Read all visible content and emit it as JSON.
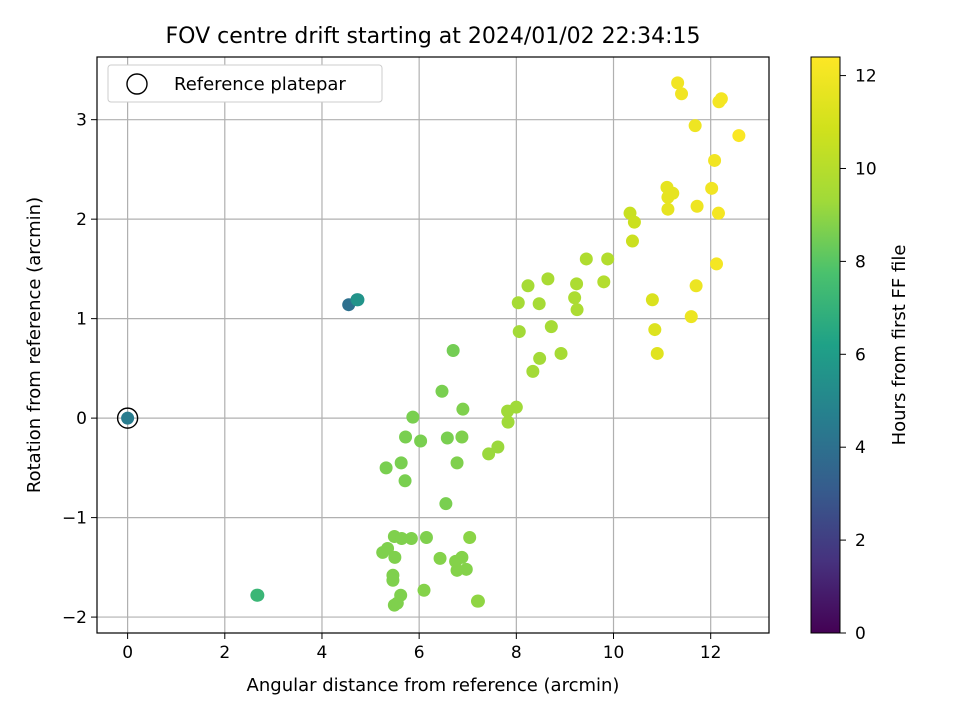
{
  "chart_data": {
    "type": "scatter",
    "title": "FOV centre drift starting at 2024/01/02 22:34:15",
    "xlabel": "Angular distance from reference (arcmin)",
    "ylabel": "Rotation from reference (arcmin)",
    "xlim": [
      -0.63,
      13.2
    ],
    "ylim": [
      -2.16,
      3.63
    ],
    "xticks": [
      0,
      2,
      4,
      6,
      8,
      10,
      12
    ],
    "yticks": [
      -2,
      -1,
      0,
      1,
      2,
      3
    ],
    "grid": true,
    "legend": {
      "position": "upper-left",
      "entries": [
        "Reference platepar"
      ]
    },
    "colorbar": {
      "label": "Hours from first FF file",
      "colormap": "viridis",
      "range": [
        0,
        12.4
      ],
      "ticks": [
        0,
        2,
        4,
        6,
        8,
        10,
        12
      ]
    },
    "reference_point": {
      "x": 0,
      "y": 0,
      "hours": 4.5
    },
    "points": [
      {
        "x": 0.0,
        "y": 0.0,
        "h": 4.5
      },
      {
        "x": 4.55,
        "y": 1.14,
        "h": 4.0
      },
      {
        "x": 4.72,
        "y": 1.19,
        "h": 5.4
      },
      {
        "x": 4.74,
        "y": 1.19,
        "h": 5.6
      },
      {
        "x": 2.68,
        "y": -1.78,
        "h": 7.1
      },
      {
        "x": 2.66,
        "y": -1.78,
        "h": 7.2
      },
      {
        "x": 6.7,
        "y": 0.68,
        "h": 8.5
      },
      {
        "x": 6.47,
        "y": 0.27,
        "h": 8.6
      },
      {
        "x": 5.87,
        "y": 0.01,
        "h": 8.6
      },
      {
        "x": 6.9,
        "y": 0.09,
        "h": 8.7
      },
      {
        "x": 5.72,
        "y": -0.19,
        "h": 8.6
      },
      {
        "x": 6.03,
        "y": -0.23,
        "h": 8.6
      },
      {
        "x": 6.58,
        "y": -0.2,
        "h": 8.6
      },
      {
        "x": 6.88,
        "y": -0.19,
        "h": 8.7
      },
      {
        "x": 5.32,
        "y": -0.5,
        "h": 8.6
      },
      {
        "x": 5.63,
        "y": -0.45,
        "h": 8.6
      },
      {
        "x": 6.78,
        "y": -0.45,
        "h": 8.7
      },
      {
        "x": 5.71,
        "y": -0.63,
        "h": 8.6
      },
      {
        "x": 6.55,
        "y": -0.86,
        "h": 8.6
      },
      {
        "x": 5.49,
        "y": -1.19,
        "h": 8.7
      },
      {
        "x": 5.64,
        "y": -1.21,
        "h": 8.7
      },
      {
        "x": 5.84,
        "y": -1.21,
        "h": 8.7
      },
      {
        "x": 6.15,
        "y": -1.2,
        "h": 8.7
      },
      {
        "x": 7.04,
        "y": -1.2,
        "h": 8.9
      },
      {
        "x": 5.25,
        "y": -1.35,
        "h": 8.7
      },
      {
        "x": 5.35,
        "y": -1.31,
        "h": 8.7
      },
      {
        "x": 5.5,
        "y": -1.4,
        "h": 8.7
      },
      {
        "x": 6.43,
        "y": -1.41,
        "h": 8.8
      },
      {
        "x": 6.75,
        "y": -1.44,
        "h": 8.8
      },
      {
        "x": 6.88,
        "y": -1.4,
        "h": 8.8
      },
      {
        "x": 6.78,
        "y": -1.53,
        "h": 8.8
      },
      {
        "x": 6.97,
        "y": -1.52,
        "h": 8.8
      },
      {
        "x": 5.46,
        "y": -1.58,
        "h": 8.7
      },
      {
        "x": 5.46,
        "y": -1.63,
        "h": 8.7
      },
      {
        "x": 5.62,
        "y": -1.78,
        "h": 8.7
      },
      {
        "x": 6.1,
        "y": -1.73,
        "h": 8.8
      },
      {
        "x": 5.49,
        "y": -1.88,
        "h": 8.7
      },
      {
        "x": 5.55,
        "y": -1.86,
        "h": 8.7
      },
      {
        "x": 7.2,
        "y": -1.84,
        "h": 9.0
      },
      {
        "x": 7.22,
        "y": -1.84,
        "h": 9.0
      },
      {
        "x": 7.43,
        "y": -0.36,
        "h": 9.2
      },
      {
        "x": 7.62,
        "y": -0.29,
        "h": 9.2
      },
      {
        "x": 7.82,
        "y": 0.07,
        "h": 9.3
      },
      {
        "x": 8.0,
        "y": 0.11,
        "h": 9.3
      },
      {
        "x": 7.83,
        "y": -0.04,
        "h": 9.3
      },
      {
        "x": 8.34,
        "y": 0.47,
        "h": 9.4
      },
      {
        "x": 8.48,
        "y": 0.6,
        "h": 9.4
      },
      {
        "x": 8.72,
        "y": 0.92,
        "h": 9.5
      },
      {
        "x": 8.92,
        "y": 0.65,
        "h": 9.5
      },
      {
        "x": 8.06,
        "y": 0.87,
        "h": 9.4
      },
      {
        "x": 8.04,
        "y": 1.16,
        "h": 9.5
      },
      {
        "x": 8.24,
        "y": 1.33,
        "h": 9.5
      },
      {
        "x": 8.47,
        "y": 1.15,
        "h": 9.5
      },
      {
        "x": 8.65,
        "y": 1.4,
        "h": 9.6
      },
      {
        "x": 9.2,
        "y": 1.21,
        "h": 9.7
      },
      {
        "x": 9.25,
        "y": 1.09,
        "h": 9.7
      },
      {
        "x": 9.24,
        "y": 1.35,
        "h": 9.7
      },
      {
        "x": 9.44,
        "y": 1.6,
        "h": 9.8
      },
      {
        "x": 9.8,
        "y": 1.37,
        "h": 9.9
      },
      {
        "x": 9.88,
        "y": 1.6,
        "h": 9.9
      },
      {
        "x": 10.34,
        "y": 2.06,
        "h": 10.6
      },
      {
        "x": 10.43,
        "y": 1.97,
        "h": 10.7
      },
      {
        "x": 10.39,
        "y": 1.78,
        "h": 10.7
      },
      {
        "x": 10.8,
        "y": 1.19,
        "h": 11.2
      },
      {
        "x": 10.85,
        "y": 0.89,
        "h": 11.3
      },
      {
        "x": 10.9,
        "y": 0.65,
        "h": 11.4
      },
      {
        "x": 11.1,
        "y": 2.32,
        "h": 11.6
      },
      {
        "x": 11.12,
        "y": 2.22,
        "h": 11.6
      },
      {
        "x": 11.22,
        "y": 2.26,
        "h": 11.6
      },
      {
        "x": 11.12,
        "y": 2.1,
        "h": 11.6
      },
      {
        "x": 11.6,
        "y": 1.02,
        "h": 11.8
      },
      {
        "x": 11.7,
        "y": 1.33,
        "h": 11.8
      },
      {
        "x": 11.72,
        "y": 2.13,
        "h": 11.9
      },
      {
        "x": 11.68,
        "y": 2.94,
        "h": 11.9
      },
      {
        "x": 12.02,
        "y": 2.31,
        "h": 12.0
      },
      {
        "x": 12.08,
        "y": 2.59,
        "h": 12.0
      },
      {
        "x": 12.16,
        "y": 2.06,
        "h": 12.1
      },
      {
        "x": 12.12,
        "y": 1.55,
        "h": 12.1
      },
      {
        "x": 12.17,
        "y": 3.18,
        "h": 12.1
      },
      {
        "x": 12.22,
        "y": 3.21,
        "h": 12.1
      },
      {
        "x": 11.32,
        "y": 3.37,
        "h": 12.0
      },
      {
        "x": 11.4,
        "y": 3.26,
        "h": 12.0
      },
      {
        "x": 12.58,
        "y": 2.84,
        "h": 12.3
      }
    ]
  }
}
